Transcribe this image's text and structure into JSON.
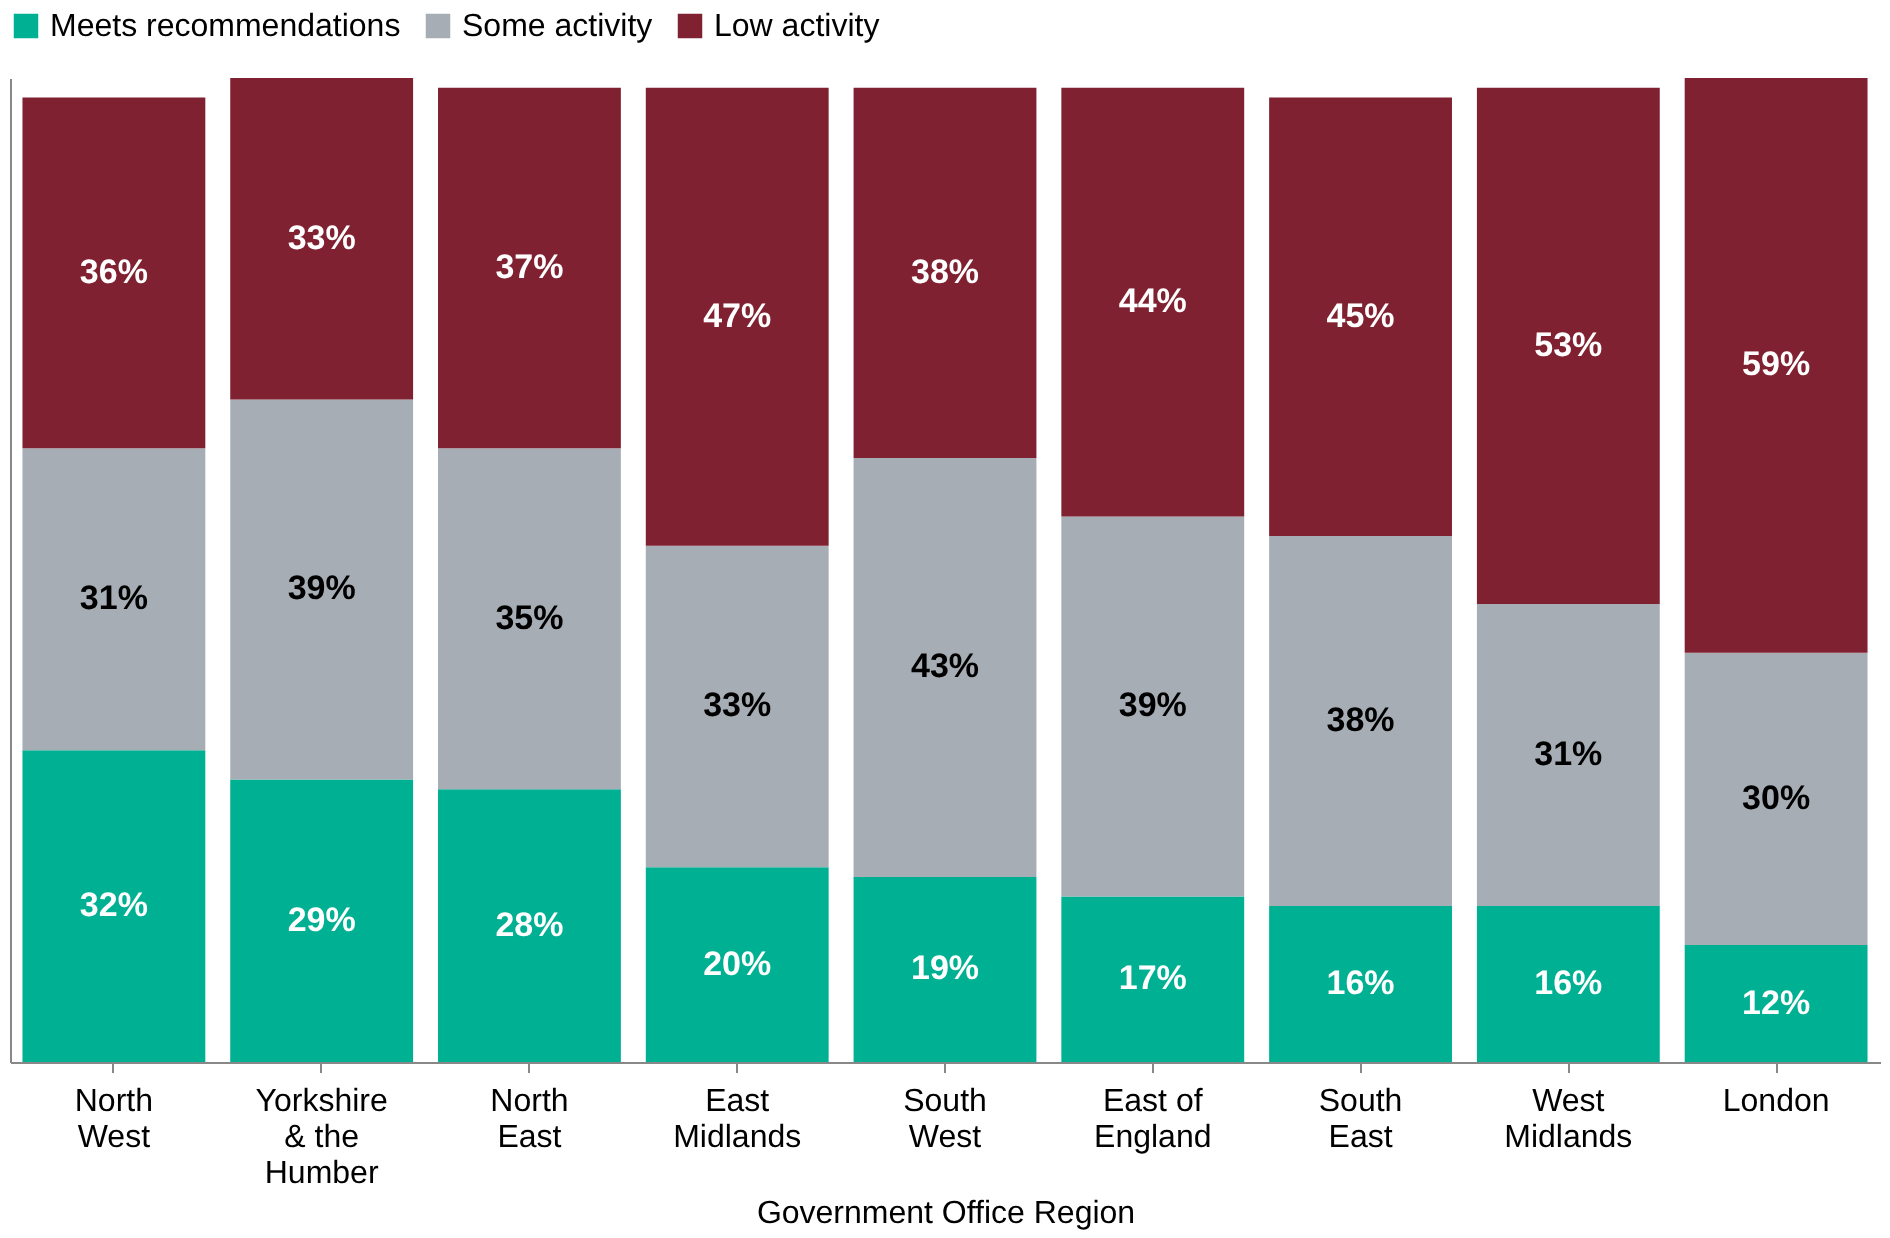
{
  "chart_data": {
    "type": "bar",
    "stacked": true,
    "xlabel": "Government  Office Region",
    "categories": [
      "North West",
      "Yorkshire & the Humber",
      "North East",
      "East Midlands",
      "South West",
      "East of England",
      "South East",
      "West Midlands",
      "London"
    ],
    "series": [
      {
        "name": "Meets recommendations",
        "color": "#00b092",
        "values": [
          32,
          29,
          28,
          20,
          19,
          17,
          16,
          16,
          12
        ],
        "value_labels": [
          "32%",
          "29%",
          "28%",
          "20%",
          "19%",
          "17%",
          "16%",
          "16%",
          "12%"
        ]
      },
      {
        "name": "Some activity",
        "color": "#a6adb4",
        "values": [
          31,
          39,
          35,
          33,
          43,
          39,
          38,
          31,
          30
        ],
        "value_labels": [
          "31%",
          "39%",
          "35%",
          "33%",
          "43%",
          "39%",
          "38%",
          "31%",
          "30%"
        ]
      },
      {
        "name": "Low activity",
        "color": "#7f2130",
        "values": [
          36,
          33,
          37,
          47,
          38,
          44,
          45,
          53,
          59
        ],
        "value_labels": [
          "36%",
          "33%",
          "37%",
          "47%",
          "38%",
          "44%",
          "45%",
          "53%",
          "59%"
        ]
      }
    ],
    "tick_labels": "x",
    "grid": false,
    "legend": "top"
  }
}
